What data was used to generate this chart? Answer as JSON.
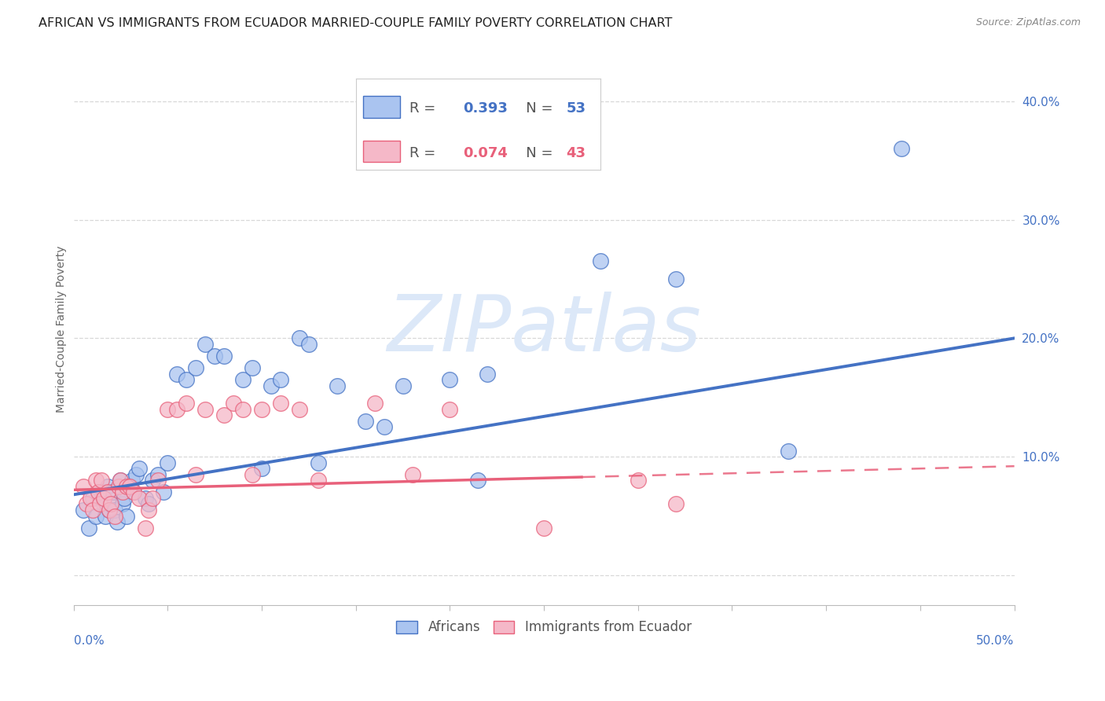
{
  "title": "AFRICAN VS IMMIGRANTS FROM ECUADOR MARRIED-COUPLE FAMILY POVERTY CORRELATION CHART",
  "source": "Source: ZipAtlas.com",
  "ylabel": "Married-Couple Family Poverty",
  "xlim": [
    0.0,
    0.5
  ],
  "ylim": [
    -0.025,
    0.44
  ],
  "african_R": 0.393,
  "african_N": 53,
  "ecuador_R": 0.074,
  "ecuador_N": 43,
  "african_color": "#aac4f0",
  "ecuador_color": "#f5b8c8",
  "african_line_color": "#4472c4",
  "ecuador_line_color": "#e8607a",
  "watermark_text": "ZIPatlas",
  "watermark_color": "#dce8f8",
  "background_color": "#ffffff",
  "grid_color": "#d8d8d8",
  "title_fontsize": 11.5,
  "axis_label_fontsize": 10,
  "tick_fontsize": 11,
  "african_x": [
    0.005,
    0.008,
    0.01,
    0.012,
    0.015,
    0.016,
    0.017,
    0.018,
    0.019,
    0.02,
    0.021,
    0.022,
    0.023,
    0.025,
    0.026,
    0.027,
    0.028,
    0.03,
    0.031,
    0.032,
    0.033,
    0.035,
    0.038,
    0.04,
    0.042,
    0.045,
    0.048,
    0.05,
    0.055,
    0.06,
    0.065,
    0.07,
    0.075,
    0.08,
    0.09,
    0.095,
    0.1,
    0.105,
    0.11,
    0.12,
    0.125,
    0.13,
    0.14,
    0.155,
    0.165,
    0.175,
    0.2,
    0.215,
    0.22,
    0.28,
    0.32,
    0.38,
    0.44
  ],
  "african_y": [
    0.055,
    0.04,
    0.065,
    0.05,
    0.07,
    0.06,
    0.05,
    0.075,
    0.055,
    0.06,
    0.07,
    0.055,
    0.045,
    0.08,
    0.06,
    0.065,
    0.05,
    0.075,
    0.08,
    0.07,
    0.085,
    0.09,
    0.065,
    0.06,
    0.08,
    0.085,
    0.07,
    0.095,
    0.17,
    0.165,
    0.175,
    0.195,
    0.185,
    0.185,
    0.165,
    0.175,
    0.09,
    0.16,
    0.165,
    0.2,
    0.195,
    0.095,
    0.16,
    0.13,
    0.125,
    0.16,
    0.165,
    0.08,
    0.17,
    0.265,
    0.25,
    0.105,
    0.36
  ],
  "ecuador_x": [
    0.005,
    0.007,
    0.009,
    0.01,
    0.012,
    0.013,
    0.014,
    0.015,
    0.016,
    0.018,
    0.019,
    0.02,
    0.022,
    0.024,
    0.025,
    0.026,
    0.028,
    0.03,
    0.032,
    0.035,
    0.038,
    0.04,
    0.042,
    0.045,
    0.05,
    0.055,
    0.06,
    0.065,
    0.07,
    0.08,
    0.085,
    0.09,
    0.095,
    0.1,
    0.11,
    0.12,
    0.13,
    0.16,
    0.18,
    0.2,
    0.25,
    0.3,
    0.32
  ],
  "ecuador_y": [
    0.075,
    0.06,
    0.065,
    0.055,
    0.08,
    0.07,
    0.06,
    0.08,
    0.065,
    0.07,
    0.055,
    0.06,
    0.05,
    0.075,
    0.08,
    0.07,
    0.075,
    0.075,
    0.07,
    0.065,
    0.04,
    0.055,
    0.065,
    0.08,
    0.14,
    0.14,
    0.145,
    0.085,
    0.14,
    0.135,
    0.145,
    0.14,
    0.085,
    0.14,
    0.145,
    0.14,
    0.08,
    0.145,
    0.085,
    0.14,
    0.04,
    0.08,
    0.06
  ]
}
